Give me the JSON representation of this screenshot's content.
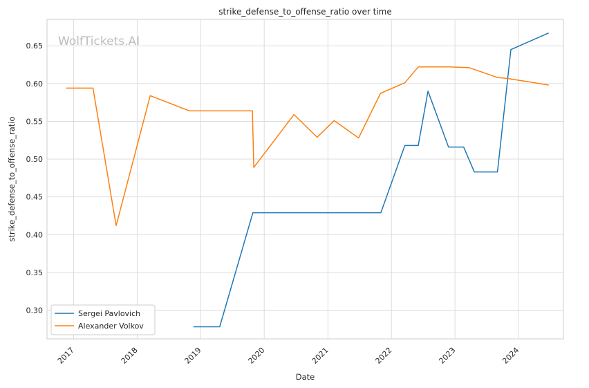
{
  "chart_data": {
    "type": "line",
    "title": "strike_defense_to_offense_ratio over time",
    "xlabel": "Date",
    "ylabel": "strike_defense_to_offense_ratio",
    "watermark": "WolfTickets.AI",
    "xlim": [
      "2016-08-01",
      "2024-09-15"
    ],
    "ylim": [
      0.262,
      0.685
    ],
    "x_ticks": [
      "2017-01-01",
      "2018-01-01",
      "2019-01-01",
      "2020-01-01",
      "2021-01-01",
      "2022-01-01",
      "2023-01-01",
      "2024-01-01"
    ],
    "x_tick_labels": [
      "2017",
      "2018",
      "2019",
      "2020",
      "2021",
      "2022",
      "2023",
      "2024"
    ],
    "y_ticks": [
      0.3,
      0.35,
      0.4,
      0.45,
      0.5,
      0.55,
      0.6,
      0.65
    ],
    "y_tick_labels": [
      "0.30",
      "0.35",
      "0.40",
      "0.45",
      "0.50",
      "0.55",
      "0.60",
      "0.65"
    ],
    "grid": true,
    "legend_position": "bottom-left",
    "series": [
      {
        "name": "Sergei Pavlovich",
        "color": "#1f77b4",
        "points": [
          {
            "x": "2018-11-20",
            "y": 0.278
          },
          {
            "x": "2019-04-20",
            "y": 0.278
          },
          {
            "x": "2019-10-28",
            "y": 0.429
          },
          {
            "x": "2021-11-01",
            "y": 0.429
          },
          {
            "x": "2022-03-19",
            "y": 0.518
          },
          {
            "x": "2022-06-04",
            "y": 0.518
          },
          {
            "x": "2022-07-30",
            "y": 0.59
          },
          {
            "x": "2022-11-25",
            "y": 0.516
          },
          {
            "x": "2023-02-20",
            "y": 0.516
          },
          {
            "x": "2023-04-22",
            "y": 0.483
          },
          {
            "x": "2023-09-02",
            "y": 0.483
          },
          {
            "x": "2023-11-18",
            "y": 0.645
          },
          {
            "x": "2024-06-22",
            "y": 0.667
          }
        ]
      },
      {
        "name": "Alexander Volkov",
        "color": "#ff7f0e",
        "points": [
          {
            "x": "2016-11-19",
            "y": 0.594
          },
          {
            "x": "2017-04-22",
            "y": 0.594
          },
          {
            "x": "2017-09-02",
            "y": 0.412
          },
          {
            "x": "2018-03-17",
            "y": 0.584
          },
          {
            "x": "2018-10-27",
            "y": 0.564
          },
          {
            "x": "2019-10-25",
            "y": 0.564
          },
          {
            "x": "2019-11-02",
            "y": 0.489
          },
          {
            "x": "2020-06-20",
            "y": 0.559
          },
          {
            "x": "2020-10-31",
            "y": 0.529
          },
          {
            "x": "2021-02-06",
            "y": 0.551
          },
          {
            "x": "2021-06-26",
            "y": 0.528
          },
          {
            "x": "2021-10-30",
            "y": 0.587
          },
          {
            "x": "2022-03-19",
            "y": 0.601
          },
          {
            "x": "2022-06-04",
            "y": 0.622
          },
          {
            "x": "2022-12-03",
            "y": 0.622
          },
          {
            "x": "2023-03-25",
            "y": 0.621
          },
          {
            "x": "2023-09-02",
            "y": 0.608
          },
          {
            "x": "2023-10-25",
            "y": 0.607
          },
          {
            "x": "2024-06-22",
            "y": 0.598
          }
        ]
      }
    ]
  }
}
